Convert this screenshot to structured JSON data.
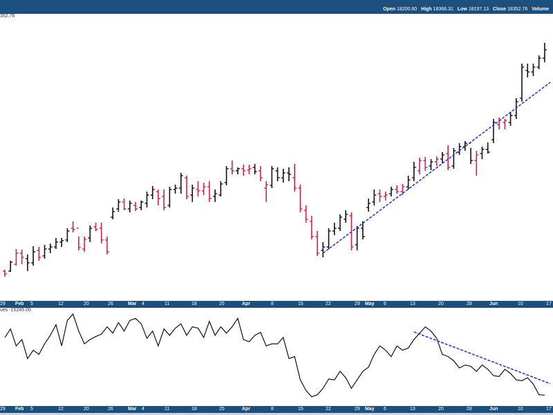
{
  "header": {
    "open_label": "Open",
    "open_value": "18200.60",
    "high_label": "High",
    "high_value": "18366.31",
    "low_label": "Low",
    "low_value": "18197.13",
    "close_label": "Close",
    "close_value": "18352.76",
    "volume_label": "Volume"
  },
  "price_label": "352.76",
  "indicator_label": "ues -15245.00",
  "colors": {
    "up": "#111111",
    "down": "#d6204f",
    "trend": "#1f3fd8",
    "bar_bg": "#1c4f7e",
    "axis_text": "#ffffff"
  },
  "x_axis": {
    "ticks": [
      {
        "label": "29",
        "bold": false
      },
      {
        "label": "Feb",
        "bold": true
      },
      {
        "label": "5",
        "bold": false
      },
      {
        "label": "12",
        "bold": false
      },
      {
        "label": "20",
        "bold": false
      },
      {
        "label": "26",
        "bold": false
      },
      {
        "label": "Mar",
        "bold": true
      },
      {
        "label": "4",
        "bold": false
      },
      {
        "label": "11",
        "bold": false
      },
      {
        "label": "18",
        "bold": false
      },
      {
        "label": "25",
        "bold": false
      },
      {
        "label": "Apr",
        "bold": true
      },
      {
        "label": "8",
        "bold": false
      },
      {
        "label": "15",
        "bold": false
      },
      {
        "label": "22",
        "bold": false
      },
      {
        "label": "29",
        "bold": false
      },
      {
        "label": "May",
        "bold": true
      },
      {
        "label": "6",
        "bold": false
      },
      {
        "label": "13",
        "bold": false
      },
      {
        "label": "20",
        "bold": false
      },
      {
        "label": "28",
        "bold": false
      },
      {
        "label": "Jun",
        "bold": true
      },
      {
        "label": "10",
        "bold": false
      },
      {
        "label": "17",
        "bold": false
      }
    ]
  },
  "chart_data": [
    {
      "type": "ohlc",
      "bars": [
        [
          0,
          310.0,
          312.0,
          302.0,
          306.0,
          1
        ],
        [
          1,
          310.0,
          325.0,
          309.0,
          323.0,
          0
        ],
        [
          2,
          320.0,
          342.0,
          318.0,
          336.0,
          1
        ],
        [
          3,
          336.0,
          341.0,
          320.0,
          330.0,
          1
        ],
        [
          4,
          328.0,
          334.0,
          310.0,
          322.0,
          0
        ],
        [
          5,
          322.0,
          346.0,
          318.0,
          338.0,
          0
        ],
        [
          6,
          340.0,
          345.0,
          325.0,
          330.0,
          1
        ],
        [
          7,
          332.0,
          348.0,
          328.0,
          342.0,
          0
        ],
        [
          8,
          342.0,
          350.0,
          336.0,
          345.0,
          0
        ],
        [
          9,
          345.0,
          358.0,
          342.0,
          352.0,
          0
        ],
        [
          10,
          352.0,
          358.0,
          345.0,
          354.0,
          0
        ],
        [
          11,
          355.0,
          372.0,
          352.0,
          368.0,
          0
        ],
        [
          12,
          372.0,
          382.0,
          366.0,
          370.0,
          1
        ],
        [
          13,
          372.0,
          360.0,
          340.0,
          344.0,
          1
        ],
        [
          14,
          342.0,
          360.0,
          338.0,
          356.0,
          1
        ],
        [
          15,
          358.0,
          376.0,
          352.0,
          372.0,
          0
        ],
        [
          16,
          374.0,
          380.0,
          368.0,
          370.0,
          1
        ],
        [
          17,
          372.0,
          380.0,
          350.0,
          355.0,
          1
        ],
        [
          18,
          355.0,
          360.0,
          334.0,
          338.0,
          1
        ],
        [
          19,
          388.0,
          402.0,
          385.0,
          396.0,
          0
        ],
        [
          20,
          400.0,
          414.0,
          396.0,
          410.0,
          0
        ],
        [
          21,
          410.0,
          415.0,
          398.0,
          400.0,
          1
        ],
        [
          22,
          400.0,
          412.0,
          395.0,
          408.0,
          0
        ],
        [
          23,
          405.0,
          410.0,
          397.0,
          400.0,
          1
        ],
        [
          24,
          402.0,
          412.0,
          398.0,
          410.0,
          0
        ],
        [
          25,
          408.0,
          425.0,
          402.0,
          420.0,
          0
        ],
        [
          26,
          420.0,
          433.0,
          414.0,
          428.0,
          0
        ],
        [
          27,
          425.0,
          428.0,
          405.0,
          415.0,
          1
        ],
        [
          28,
          418.0,
          428.0,
          398.0,
          402.0,
          1
        ],
        [
          29,
          405.0,
          432.0,
          402.0,
          428.0,
          0
        ],
        [
          30,
          428.0,
          435.0,
          422.0,
          430.0,
          0
        ],
        [
          31,
          430.0,
          452.0,
          422.0,
          448.0,
          0
        ],
        [
          32,
          445.0,
          448.0,
          414.0,
          418.0,
          1
        ],
        [
          33,
          420.0,
          435.0,
          410.0,
          430.0,
          0
        ],
        [
          34,
          428.0,
          440.0,
          418.0,
          426.0,
          1
        ],
        [
          35,
          426.0,
          438.0,
          420.0,
          432.0,
          1
        ],
        [
          36,
          432.0,
          440.0,
          410.0,
          415.0,
          1
        ],
        [
          37,
          418.0,
          428.0,
          410.0,
          422.0,
          0
        ],
        [
          38,
          420.0,
          440.0,
          418.0,
          436.0,
          0
        ],
        [
          39,
          438.0,
          462.0,
          434.0,
          458.0,
          0
        ],
        [
          40,
          458.0,
          470.0,
          450.0,
          455.0,
          1
        ],
        [
          41,
          455.0,
          460.0,
          450.0,
          458.0,
          0
        ],
        [
          42,
          458.0,
          464.0,
          448.0,
          455.0,
          1
        ],
        [
          43,
          456.0,
          464.0,
          450.0,
          458.0,
          1
        ],
        [
          44,
          460.0,
          465.0,
          450.0,
          454.0,
          0
        ],
        [
          45,
          455.0,
          462.0,
          440.0,
          445.0,
          1
        ],
        [
          46,
          430.0,
          440.0,
          410.0,
          435.0,
          1
        ],
        [
          47,
          434.0,
          462.0,
          430.0,
          458.0,
          0
        ],
        [
          48,
          455.0,
          460.0,
          440.0,
          445.0,
          0
        ],
        [
          49,
          445.0,
          458.0,
          438.0,
          452.0,
          0
        ],
        [
          50,
          452.0,
          460.0,
          440.0,
          450.0,
          0
        ],
        [
          51,
          445.0,
          465.0,
          425.0,
          430.0,
          1
        ],
        [
          52,
          430.0,
          435.0,
          395.0,
          400.0,
          1
        ],
        [
          53,
          398.0,
          405.0,
          380.0,
          385.0,
          1
        ],
        [
          54,
          382.0,
          390.0,
          356.0,
          360.0,
          1
        ],
        [
          55,
          360.0,
          368.0,
          332.0,
          336.0,
          1
        ],
        [
          56,
          340.0,
          352.0,
          330.0,
          345.0,
          0
        ],
        [
          57,
          345.0,
          372.0,
          342.0,
          368.0,
          0
        ],
        [
          58,
          368.0,
          380.0,
          362.0,
          372.0,
          0
        ],
        [
          59,
          372.0,
          392.0,
          368.0,
          388.0,
          0
        ],
        [
          60,
          385.0,
          398.0,
          380.0,
          392.0,
          0
        ],
        [
          61,
          390.0,
          395.0,
          340.0,
          345.0,
          1
        ],
        [
          62,
          348.0,
          375.0,
          340.0,
          372.0,
          0
        ],
        [
          63,
          372.0,
          382.0,
          356.0,
          360.0,
          0
        ],
        [
          64,
          402.0,
          415.0,
          396.0,
          408.0,
          0
        ],
        [
          65,
          410.0,
          428.0,
          405.0,
          420.0,
          0
        ],
        [
          66,
          422.0,
          428.0,
          410.0,
          418.0,
          1
        ],
        [
          67,
          418.0,
          425.0,
          412.0,
          420.0,
          1
        ],
        [
          68,
          422.0,
          432.0,
          418.0,
          428.0,
          0
        ],
        [
          69,
          428.0,
          434.0,
          422.0,
          425.0,
          1
        ],
        [
          70,
          425.0,
          436.0,
          420.0,
          432.0,
          1
        ],
        [
          71,
          432.0,
          448.0,
          428.0,
          442.0,
          0
        ],
        [
          72,
          445.0,
          468.0,
          440.0,
          460.0,
          0
        ],
        [
          73,
          455.0,
          474.0,
          450.0,
          470.0,
          1
        ],
        [
          74,
          470.0,
          475.0,
          455.0,
          460.0,
          1
        ],
        [
          75,
          462.0,
          472.0,
          456.0,
          468.0,
          0
        ],
        [
          76,
          468.0,
          476.0,
          462.0,
          472.0,
          1
        ],
        [
          77,
          472.0,
          482.0,
          466.0,
          478.0,
          0
        ],
        [
          78,
          480.0,
          492.0,
          456.0,
          460.0,
          1
        ],
        [
          79,
          462.0,
          488.0,
          458.0,
          484.0,
          0
        ],
        [
          80,
          482.0,
          495.0,
          478.0,
          490.0,
          0
        ],
        [
          81,
          490.0,
          498.0,
          484.0,
          495.0,
          0
        ],
        [
          82,
          495.0,
          488.0,
          465.0,
          470.0,
          0
        ],
        [
          83,
          470.0,
          484.0,
          448.0,
          478.0,
          1
        ],
        [
          84,
          480.0,
          490.0,
          472.0,
          486.0,
          0
        ],
        [
          85,
          486.0,
          496.0,
          480.0,
          482.0,
          0
        ],
        [
          86,
          500.0,
          530.0,
          495.0,
          525.0,
          0
        ],
        [
          87,
          522.0,
          532.0,
          515.0,
          528.0,
          1
        ],
        [
          88,
          525.0,
          530.0,
          515.0,
          528.0,
          1
        ],
        [
          89,
          525.0,
          540.0,
          520.0,
          535.0,
          0
        ],
        [
          90,
          535.0,
          560.0,
          530.0,
          555.0,
          0
        ],
        [
          91,
          560.0,
          610.0,
          555.0,
          605.0,
          0
        ],
        [
          92,
          600.0,
          610.0,
          590.0,
          598.0,
          0
        ],
        [
          93,
          598.0,
          610.0,
          592.0,
          605.0,
          0
        ],
        [
          94,
          605.0,
          622.0,
          602.0,
          618.0,
          0
        ],
        [
          95,
          618.0,
          640.0,
          612.0,
          630.0,
          0
        ]
      ],
      "trendlines": [
        [
          56,
          336.0,
          96,
          583.0
        ]
      ],
      "ylim": [
        270,
        680
      ]
    },
    {
      "type": "line",
      "values": [
        -15220,
        -15200,
        -15240,
        -15225,
        -15270,
        -15250,
        -15260,
        -15235,
        -15215,
        -15190,
        -15240,
        -15180,
        -15165,
        -15205,
        -15235,
        -15225,
        -15218,
        -15212,
        -15195,
        -15210,
        -15185,
        -15205,
        -15180,
        -15175,
        -15188,
        -15222,
        -15205,
        -15240,
        -15200,
        -15215,
        -15198,
        -15188,
        -15215,
        -15195,
        -15198,
        -15220,
        -15182,
        -15215,
        -15195,
        -15210,
        -15195,
        -15175,
        -15225,
        -15230,
        -15215,
        -15208,
        -15240,
        -15235,
        -15235,
        -15220,
        -15270,
        -15265,
        -15320,
        -15345,
        -15360,
        -15355,
        -15340,
        -15318,
        -15320,
        -15300,
        -15315,
        -15340,
        -15320,
        -15300,
        -15290,
        -15260,
        -15240,
        -15250,
        -15265,
        -15240,
        -15250,
        -15245,
        -15225,
        -15210,
        -15195,
        -15205,
        -15222,
        -15260,
        -15265,
        -15275,
        -15292,
        -15285,
        -15288,
        -15300,
        -15285,
        -15295,
        -15310,
        -15312,
        -15295,
        -15305,
        -15320,
        -15322,
        -15315,
        -15330,
        -15355,
        -15356
      ],
      "trendlines": [
        [
          72,
          -15207,
          96,
          -15329
        ]
      ],
      "ylim": [
        -15380,
        -15155
      ]
    }
  ]
}
